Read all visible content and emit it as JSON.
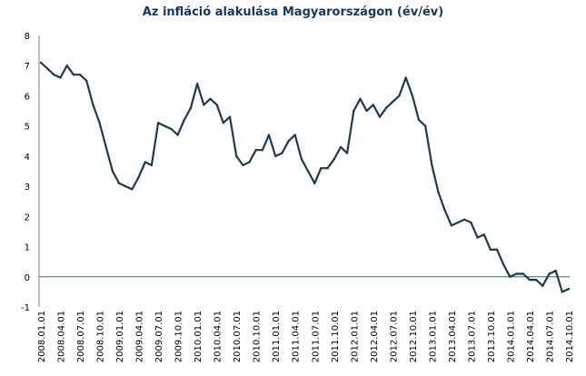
{
  "chart_data": {
    "type": "line",
    "title": "Az infláció alakulása Magyarországon (év/év)",
    "xlabel": "",
    "ylabel": "",
    "ylim": [
      -1,
      8
    ],
    "yticks": [
      "8",
      "7",
      "6",
      "5",
      "4",
      "3",
      "2",
      "1",
      "0",
      "-1"
    ],
    "grid": false,
    "legend": "none",
    "line_color": "#1f3a4d",
    "zero_line_color": "#2e6e77",
    "xtick_labels": [
      "2008.01.01",
      "2008.04.01",
      "2008.07.01",
      "2008.10.01",
      "2009.01.01",
      "2009.04.01",
      "2009.07.01",
      "2009.10.01",
      "2010.01.01",
      "2010.04.01",
      "2010.07.01",
      "2010.10.01",
      "2011.01.01",
      "2011.04.01",
      "2011.07.01",
      "2011.10.01",
      "2012.01.01",
      "2012.04.01",
      "2012.07.01",
      "2012.10.01",
      "2013.01.01",
      "2013.04.01",
      "2013.07.01",
      "2013.10.01",
      "2014.01.01",
      "2014.04.01",
      "2014.07.01",
      "2014.10.01"
    ],
    "x": [
      "2008.01",
      "2008.02",
      "2008.03",
      "2008.04",
      "2008.05",
      "2008.06",
      "2008.07",
      "2008.08",
      "2008.09",
      "2008.10",
      "2008.11",
      "2008.12",
      "2009.01",
      "2009.02",
      "2009.03",
      "2009.04",
      "2009.05",
      "2009.06",
      "2009.07",
      "2009.08",
      "2009.09",
      "2009.10",
      "2009.11",
      "2009.12",
      "2010.01",
      "2010.02",
      "2010.03",
      "2010.04",
      "2010.05",
      "2010.06",
      "2010.07",
      "2010.08",
      "2010.09",
      "2010.10",
      "2010.11",
      "2010.12",
      "2011.01",
      "2011.02",
      "2011.03",
      "2011.04",
      "2011.05",
      "2011.06",
      "2011.07",
      "2011.08",
      "2011.09",
      "2011.10",
      "2011.11",
      "2011.12",
      "2012.01",
      "2012.02",
      "2012.03",
      "2012.04",
      "2012.05",
      "2012.06",
      "2012.07",
      "2012.08",
      "2012.09",
      "2012.10",
      "2012.11",
      "2012.12",
      "2013.01",
      "2013.02",
      "2013.03",
      "2013.04",
      "2013.05",
      "2013.06",
      "2013.07",
      "2013.08",
      "2013.09",
      "2013.10",
      "2013.11",
      "2013.12",
      "2014.01",
      "2014.02",
      "2014.03",
      "2014.04",
      "2014.05",
      "2014.06",
      "2014.07",
      "2014.08",
      "2014.09",
      "2014.10"
    ],
    "series": [
      {
        "values": [
          7.1,
          6.9,
          6.7,
          6.6,
          7.0,
          6.7,
          6.7,
          6.5,
          5.7,
          5.1,
          4.3,
          3.5,
          3.1,
          3.0,
          2.9,
          3.3,
          3.8,
          3.7,
          5.1,
          5.0,
          4.9,
          4.7,
          5.2,
          5.6,
          6.4,
          5.7,
          5.9,
          5.7,
          5.1,
          5.3,
          4.0,
          3.7,
          3.8,
          4.2,
          4.2,
          4.7,
          4.0,
          4.1,
          4.5,
          4.7,
          3.9,
          3.5,
          3.1,
          3.6,
          3.6,
          3.9,
          4.3,
          4.1,
          5.5,
          5.9,
          5.5,
          5.7,
          5.3,
          5.6,
          5.8,
          6.0,
          6.6,
          6.0,
          5.2,
          5.0,
          3.7,
          2.8,
          2.2,
          1.7,
          1.8,
          1.9,
          1.8,
          1.3,
          1.4,
          0.9,
          0.9,
          0.4,
          0.0,
          0.1,
          0.1,
          -0.1,
          -0.1,
          -0.3,
          0.1,
          0.2,
          -0.5,
          -0.4
        ]
      }
    ]
  }
}
